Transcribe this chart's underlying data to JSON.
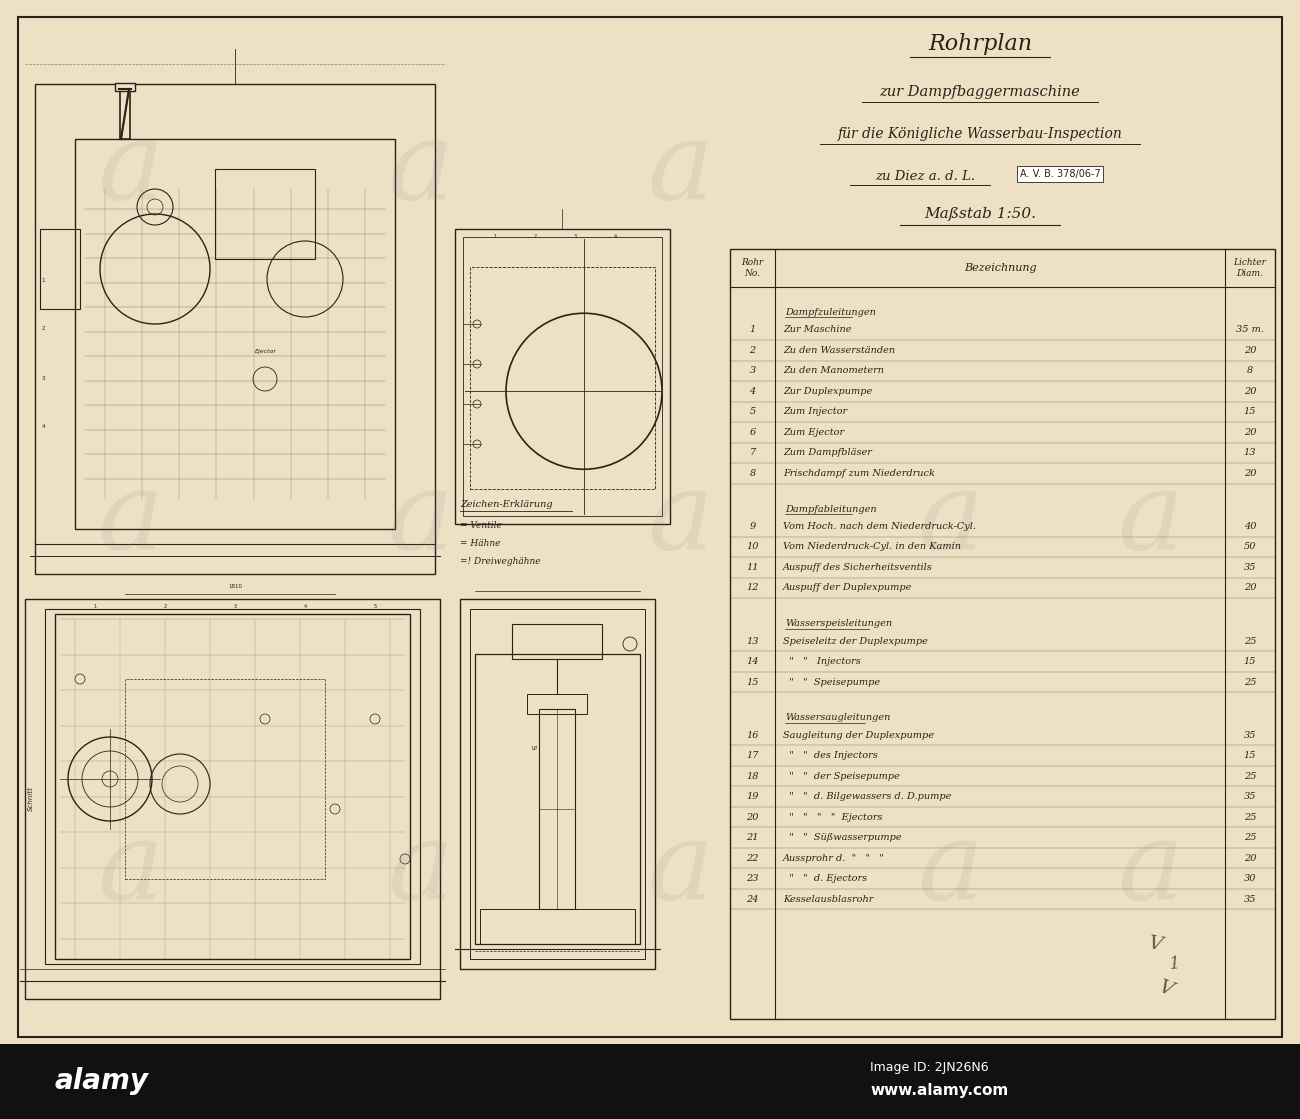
{
  "paper_color": "#ede0c4",
  "ink_color": "#2a2218",
  "title_lines": [
    "Rohrplan",
    "zur Dampfbaggermaschine",
    "für die Königliche Wasserbau-Inspection",
    "zu Diez a. d. L.",
    "Maßstab 1:50."
  ],
  "ref_number": "A. V. B. 378/06-7",
  "sections": [
    {
      "name": "Dampfzuleitungen",
      "rows": [
        [
          "1",
          "Zur Maschine",
          "35 m."
        ],
        [
          "2",
          "Zu den Wasserständen",
          "20"
        ],
        [
          "3",
          "Zu den Manometern",
          "8"
        ],
        [
          "4",
          "Zur Duplexpumpe",
          "20"
        ],
        [
          "5",
          "Zum Injector",
          "15"
        ],
        [
          "6",
          "Zum Ejector",
          "20"
        ],
        [
          "7",
          "Zum Dampfbläser",
          "13"
        ],
        [
          "8",
          "Frischdampf zum Niederdruck",
          "20"
        ]
      ]
    },
    {
      "name": "Dampfableitungen",
      "rows": [
        [
          "9",
          "Vom Hoch. nach dem Niederdruck-Cyl.",
          "40"
        ],
        [
          "10",
          "Vom Niederdruck-Cyl. in den Kamin",
          "50"
        ],
        [
          "11",
          "Auspuff des Sicherheitsventils",
          "35"
        ],
        [
          "12",
          "Auspuff der Duplexpumpe",
          "20"
        ]
      ]
    },
    {
      "name": "Wasserspeisleitungen",
      "rows": [
        [
          "13",
          "Speiseleitz der Duplexpumpe",
          "25"
        ],
        [
          "14",
          "  \"   \"   Injectors",
          "15"
        ],
        [
          "15",
          "  \"   \"  Speisepumpe",
          "25"
        ]
      ]
    },
    {
      "name": "Wassersaugleitungen",
      "rows": [
        [
          "16",
          "Saugleitung der Duplexpumpe",
          "35"
        ],
        [
          "17",
          "  \"   \"  des Injectors",
          "15"
        ],
        [
          "18",
          "  \"   \"  der Speisepumpe",
          "25"
        ],
        [
          "19",
          "  \"   \"  d. Bilgewassers d. D.pumpe",
          "35"
        ],
        [
          "20",
          "  \"   \"   \"   \"  Ejectors",
          "25"
        ],
        [
          "21",
          "  \"   \"  Süßwasserpumpe",
          "25"
        ],
        [
          "22",
          "Aussprohr d.  \"   \"   \"",
          "20"
        ],
        [
          "23",
          "  \"   \"  d. Ejectors",
          "30"
        ],
        [
          "24",
          "Kesselausblasrohr",
          "35"
        ]
      ]
    }
  ],
  "legend_title": "Zeichen-Erklärung",
  "legend_items": [
    "= Ventile",
    "= Hähne",
    "=! Dreiweghähne"
  ]
}
